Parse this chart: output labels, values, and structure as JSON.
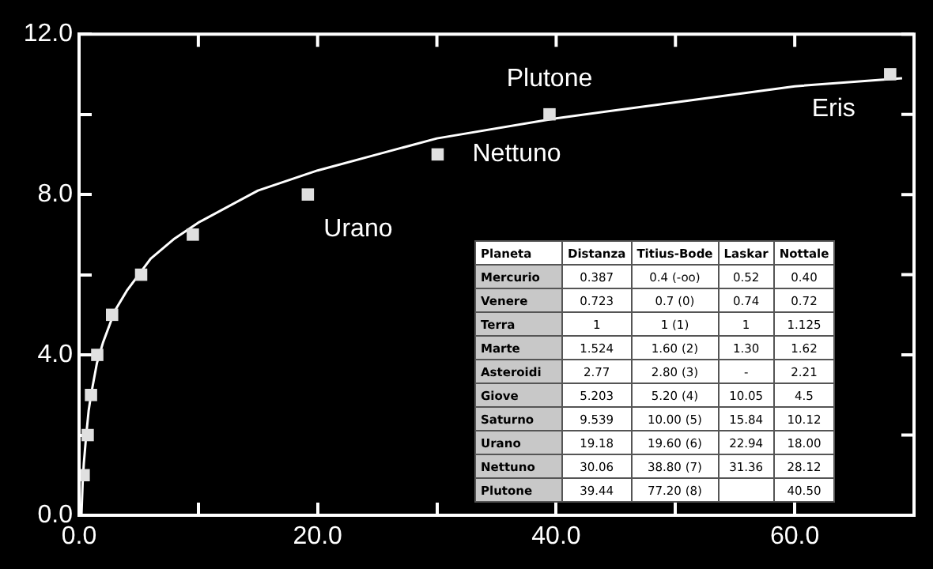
{
  "chart_data": [
    {
      "type": "scatter",
      "xlim": [
        0,
        70
      ],
      "ylim": [
        0,
        12
      ],
      "xticks": [
        {
          "value": 0,
          "label": "0.0"
        },
        {
          "value": 10,
          "label": null
        },
        {
          "value": 20,
          "label": "20.0"
        },
        {
          "value": 30,
          "label": null
        },
        {
          "value": 40,
          "label": "40.0"
        },
        {
          "value": 50,
          "label": null
        },
        {
          "value": 60,
          "label": "60.0"
        },
        {
          "value": 70,
          "label": null
        }
      ],
      "yticks": [
        {
          "value": 0,
          "label": "0.0"
        },
        {
          "value": 2,
          "label": null
        },
        {
          "value": 4,
          "label": "4.0"
        },
        {
          "value": 6,
          "label": null
        },
        {
          "value": 8,
          "label": "8.0"
        },
        {
          "value": 10,
          "label": null
        },
        {
          "value": 12,
          "label": "12.0"
        }
      ],
      "grid": false,
      "legend": false,
      "series": [
        {
          "type": "scatter",
          "color": "#e0e0e0",
          "marker": "square",
          "x": [
            0.387,
            0.723,
            1,
            1.524,
            2.77,
            5.203,
            9.539,
            19.18,
            30.06,
            39.44,
            68
          ],
          "values": [
            1,
            2,
            3,
            4,
            5,
            6,
            7,
            8,
            9,
            10,
            11
          ]
        },
        {
          "type": "line",
          "color": "#ffffff",
          "marker": "none",
          "line_style": "solid",
          "x": [
            0.2,
            0.3,
            0.4,
            0.6,
            0.8,
            1,
            1.5,
            2,
            3,
            4,
            6,
            8,
            10,
            15,
            20,
            25,
            30,
            40,
            50,
            60,
            69
          ],
          "values": [
            0.0,
            0.8,
            1.3,
            2.0,
            2.6,
            3.0,
            3.8,
            4.3,
            5.1,
            5.6,
            6.4,
            6.9,
            7.3,
            8.1,
            8.6,
            9.0,
            9.4,
            9.9,
            10.3,
            10.7,
            10.9
          ]
        }
      ],
      "annotations": [
        {
          "text": "Urano",
          "x": 19.18,
          "y": 8
        },
        {
          "text": "Nettuno",
          "x": 30.06,
          "y": 9
        },
        {
          "text": "Plutone",
          "x": 39.44,
          "y": 10
        },
        {
          "text": "Eris",
          "x": 68,
          "y": 11
        }
      ]
    },
    {
      "type": "other",
      "categories": [
        "Planeta",
        "Distanza",
        "Titius-Bode",
        "Laskar",
        "Nottale"
      ],
      "y_categories": [
        "Mercurio",
        "Venere",
        "Terra",
        "Marte",
        "Asteroidi",
        "Giove",
        "Saturno",
        "Urano",
        "Nettuno",
        "Plutone"
      ],
      "cell_labels": [
        [
          "0.387",
          "0.4 (-oo)",
          "0.52",
          "0.40"
        ],
        [
          "0.723",
          "0.7 (0)",
          "0.74",
          "0.72"
        ],
        [
          "1",
          "1 (1)",
          "1",
          "1.125"
        ],
        [
          "1.524",
          "1.60 (2)",
          "1.30",
          "1.62"
        ],
        [
          "2.77",
          "2.80 (3)",
          "-",
          "2.21"
        ],
        [
          "5.203",
          "5.20 (4)",
          "10.05",
          "4.5"
        ],
        [
          "9.539",
          "10.00 (5)",
          "15.84",
          "10.12"
        ],
        [
          "19.18",
          "19.60 (6)",
          "22.94",
          "18.00"
        ],
        [
          "30.06",
          "38.80 (7)",
          "31.36",
          "28.12"
        ],
        [
          "39.44",
          "77.20 (8)",
          null,
          "40.50"
        ]
      ]
    }
  ]
}
